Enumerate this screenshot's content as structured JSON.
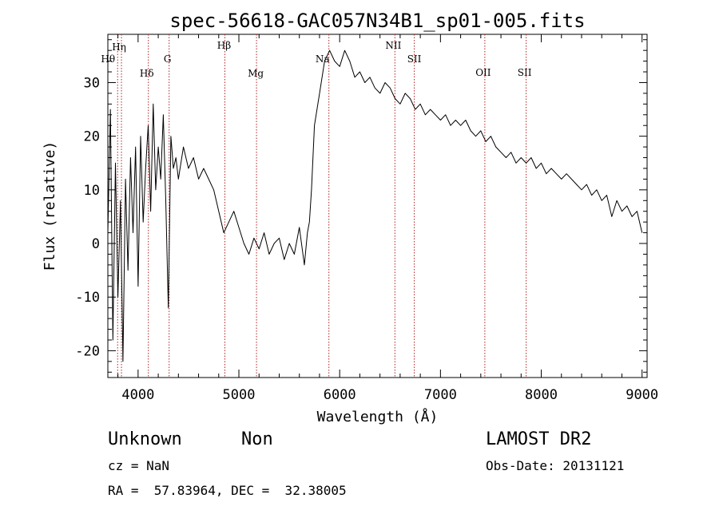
{
  "chart_data": {
    "type": "line",
    "title": "spec-56618-GAC057N34B1_sp01-005.fits",
    "xlabel": "Wavelength (Å)",
    "ylabel": "Flux (relative)",
    "xlim": [
      3700,
      9050
    ],
    "ylim": [
      -25,
      39
    ],
    "xticks": [
      4000,
      5000,
      6000,
      7000,
      8000,
      9000
    ],
    "yticks": [
      -20,
      -10,
      0,
      10,
      20,
      30
    ],
    "line_color": "#000000",
    "marker_color": "#b22222",
    "series": [
      {
        "x": [
          3700,
          3725,
          3750,
          3775,
          3800,
          3825,
          3850,
          3875,
          3900,
          3925,
          3950,
          3975,
          4000,
          4025,
          4050,
          4075,
          4100,
          4125,
          4150,
          4175,
          4200,
          4225,
          4250,
          4275,
          4300,
          4325,
          4350,
          4375,
          4400,
          4450,
          4500,
          4550,
          4600,
          4650,
          4700,
          4750,
          4800,
          4850,
          4900,
          4950,
          5000,
          5050,
          5100,
          5150,
          5200,
          5250,
          5300,
          5350,
          5400,
          5450,
          5500,
          5550,
          5600,
          5650,
          5680,
          5700,
          5720,
          5750,
          5800,
          5850,
          5900,
          5950,
          6000,
          6050,
          6100,
          6150,
          6200,
          6250,
          6300,
          6350,
          6400,
          6450,
          6500,
          6550,
          6600,
          6650,
          6700,
          6750,
          6800,
          6850,
          6900,
          6950,
          7000,
          7050,
          7100,
          7150,
          7200,
          7250,
          7300,
          7350,
          7400,
          7450,
          7500,
          7550,
          7600,
          7650,
          7700,
          7750,
          7800,
          7850,
          7900,
          7950,
          8000,
          8050,
          8100,
          8150,
          8200,
          8250,
          8300,
          8350,
          8400,
          8450,
          8500,
          8550,
          8600,
          8650,
          8700,
          8750,
          8800,
          8850,
          8900,
          8950,
          9000
        ],
        "y": [
          2,
          25,
          -18,
          15,
          -10,
          8,
          -22,
          12,
          -5,
          16,
          2,
          18,
          -8,
          20,
          4,
          14,
          22,
          6,
          26,
          10,
          18,
          12,
          24,
          8,
          -12,
          20,
          14,
          16,
          12,
          18,
          14,
          16,
          12,
          14,
          12,
          10,
          6,
          2,
          4,
          6,
          3,
          0,
          -2,
          1,
          -1,
          2,
          -2,
          0,
          1,
          -3,
          0,
          -2,
          3,
          -4,
          2,
          4,
          10,
          22,
          28,
          34,
          36,
          34,
          33,
          36,
          34,
          31,
          32,
          30,
          31,
          29,
          28,
          30,
          29,
          27,
          26,
          28,
          27,
          25,
          26,
          24,
          25,
          24,
          23,
          24,
          22,
          23,
          22,
          23,
          21,
          20,
          21,
          19,
          20,
          18,
          17,
          16,
          17,
          15,
          16,
          15,
          16,
          14,
          15,
          13,
          14,
          13,
          12,
          13,
          12,
          11,
          10,
          11,
          9,
          10,
          8,
          9,
          5,
          8,
          6,
          7,
          5,
          6,
          2
        ]
      }
    ],
    "annotations": [
      {
        "label": "Hη",
        "x": 3835
      },
      {
        "label": "Hθ",
        "x": 3797
      },
      {
        "label": "Hδ",
        "x": 4102
      },
      {
        "label": "G",
        "x": 4308
      },
      {
        "label": "Hβ",
        "x": 4861
      },
      {
        "label": "Mg",
        "x": 5175
      },
      {
        "label": "Na",
        "x": 5893
      },
      {
        "label": "NII",
        "x": 6548
      },
      {
        "label": "SII",
        "x": 6740
      },
      {
        "label": "OII",
        "x": 7440
      },
      {
        "label": "SII",
        "x": 7850
      }
    ]
  },
  "info": {
    "object_class": "Unknown",
    "object_subclass": "Non",
    "survey": "LAMOST DR2",
    "redshift": "cz = NaN",
    "obs_date": "Obs-Date: 20131121",
    "coordinates": "RA =  57.83964, DEC =  32.38005"
  }
}
